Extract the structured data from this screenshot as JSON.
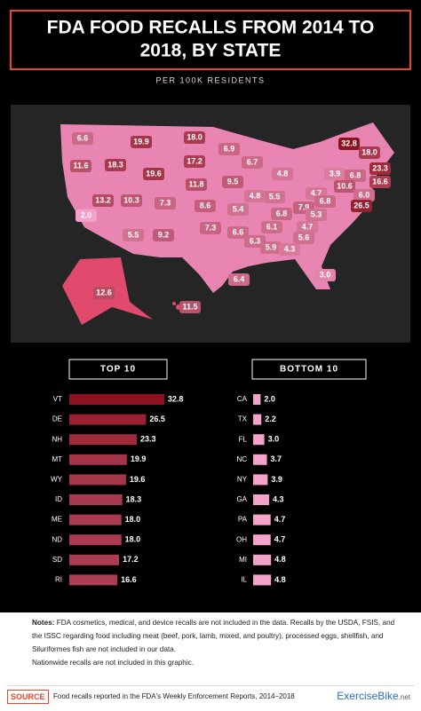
{
  "header": {
    "title_lines": [
      "FDA FOOD RECALLS FROM 2014 TO",
      "2018, BY STATE"
    ],
    "subtitle": "PER 100K RESIDENTS"
  },
  "map": {
    "values": [
      6.6,
      19.9,
      18.0,
      11.6,
      18.3,
      19.6,
      17.2,
      6.9,
      6.7,
      32.8,
      18.0,
      23.3,
      16.6,
      13.2,
      10.3,
      7.3,
      11.8,
      9.5,
      4.8,
      3.9,
      4.7,
      5.5,
      4.8,
      6.8,
      10.6,
      6.0,
      26.5,
      6.8,
      7.9,
      6.8,
      5.3,
      2.0,
      8.6,
      5.4,
      5.5,
      9.2,
      7.3,
      6.6,
      6.1,
      4.7,
      6.3,
      5.9,
      4.3,
      5.6,
      6.4,
      3.0,
      12.6,
      11.5
    ],
    "value_labels": [
      "6.6",
      "19.9",
      "18.0",
      "11.6",
      "18.3",
      "19.6",
      "17.2",
      "6.9",
      "6.7",
      "32.8",
      "18.0",
      "23.3",
      "16.6",
      "13.2",
      "10.3",
      "7.3",
      "11.8",
      "9.5",
      "4.8",
      "3.9",
      "4.7",
      "5.5",
      "4.8",
      "6.8",
      "10.6",
      "6.0",
      "26.5",
      "6.8",
      "7.9",
      "6.8",
      "5.3",
      "2.0",
      "8.6",
      "5.4",
      "5.5",
      "9.2",
      "7.3",
      "6.6",
      "6.1",
      "4.7",
      "6.3",
      "5.9",
      "4.3",
      "5.6",
      "6.4",
      "3.0",
      "12.6",
      "11.5"
    ]
  },
  "chart_data": [
    {
      "type": "bar",
      "title": "TOP 10",
      "categories": [
        "VT",
        "DE",
        "NH",
        "MT",
        "WY",
        "ID",
        "ME",
        "ND",
        "SD",
        "RI"
      ],
      "values": [
        32.8,
        26.5,
        23.3,
        19.9,
        19.6,
        18.3,
        18.0,
        18.0,
        17.2,
        16.6
      ],
      "value_labels": [
        "32.8",
        "26.5",
        "23.3",
        "19.9",
        "19.6",
        "18.3",
        "18.0",
        "18.0",
        "17.2",
        "16.6"
      ],
      "color": "#c8283a"
    },
    {
      "type": "bar",
      "title": "BOTTOM 10",
      "categories": [
        "CA",
        "TX",
        "FL",
        "NC",
        "NY",
        "GA",
        "PA",
        "OH",
        "MI",
        "IL"
      ],
      "values": [
        2.0,
        2.2,
        3.0,
        3.7,
        3.9,
        4.3,
        4.7,
        4.7,
        4.8,
        4.8
      ],
      "value_labels": [
        "2.0",
        "2.2",
        "3.0",
        "3.7",
        "3.9",
        "4.3",
        "4.7",
        "4.7",
        "4.8",
        "4.8"
      ],
      "color": "#f3a3c9"
    }
  ],
  "notes": {
    "label": "Notes:",
    "lines": [
      "FDA cosmetics, medical, and device recalls are not included in the data. Recalls by the USDA, FSIS, and the ISSC regarding food including meat (beef, pork, lamb, mixed, and poultry), processed eggs, shellfish, and Siluriformes fish are not included in our data.",
      "Nationwide recalls are not included in this graphic."
    ]
  },
  "source": {
    "label": "SOURCE",
    "text": "Food recalls reported in the FDA's Weekly Enforcement Reports, 2014–2018",
    "logo": "ExerciseBike",
    "logo_suffix": ".net"
  }
}
